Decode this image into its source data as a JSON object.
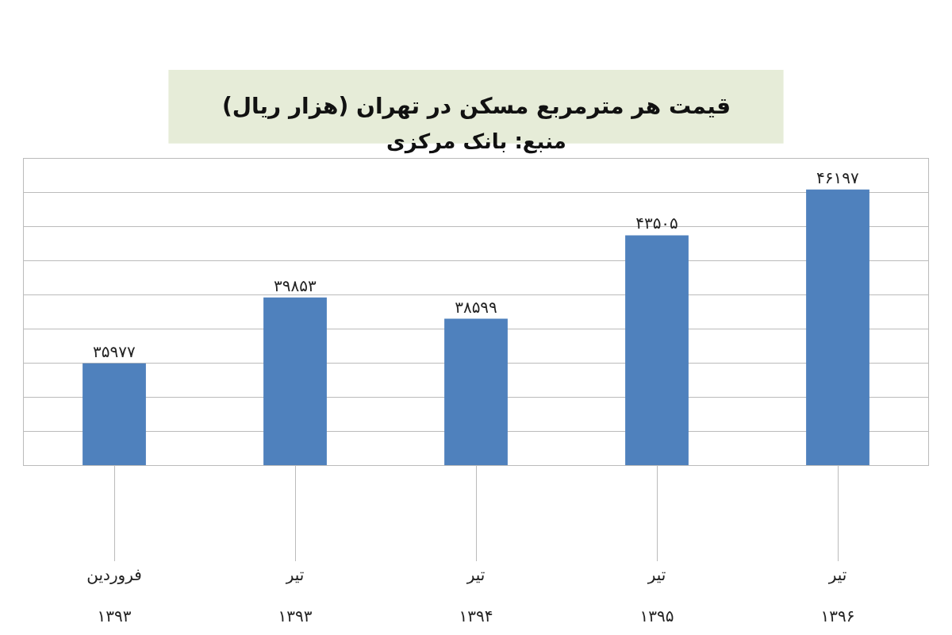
{
  "chart_data": {
    "type": "bar",
    "title": "قیمت هر مترمربع مسکن در تهران (هزار ریال)",
    "subtitle": "منبع: بانک مرکزی",
    "categories": [
      "فروردین\n۱۳۹۳",
      "تیر\n۱۳۹۳",
      "تیر\n۱۳۹۴",
      "تیر\n۱۳۹۵",
      "تیر\n۱۳۹۶"
    ],
    "values": [
      35977,
      39853,
      38599,
      43505,
      46197
    ],
    "value_labels": [
      "۳۵۹۷۷",
      "۳۹۸۵۳",
      "۳۸۵۹۹",
      "۴۳۵۰۵",
      "۴۶۱۹۷"
    ],
    "color": "#4f81bd",
    "ylim": [
      30000,
      48000
    ],
    "yticks": [
      {
        "value": 30000,
        "label": null
      },
      {
        "value": 32000,
        "label": null
      },
      {
        "value": 34000,
        "label": null
      },
      {
        "value": 36000,
        "label": null
      },
      {
        "value": 38000,
        "label": null
      },
      {
        "value": 40000,
        "label": null
      },
      {
        "value": 42000,
        "label": null
      },
      {
        "value": 44000,
        "label": null
      },
      {
        "value": 46000,
        "label": null
      },
      {
        "value": 48000,
        "label": null
      }
    ],
    "tick_labels": "x",
    "grid": "y"
  }
}
